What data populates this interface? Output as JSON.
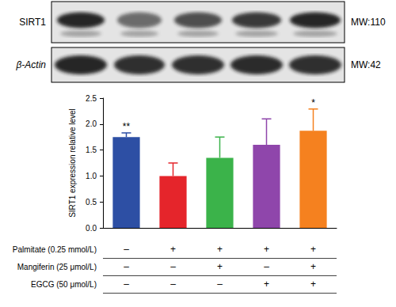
{
  "blot": {
    "rows": [
      {
        "label": "SIRT1",
        "mw": "MW:110"
      },
      {
        "label": "β-Actin",
        "mw": "MW:42"
      }
    ]
  },
  "chart_data": {
    "type": "bar",
    "ylabel": "SIRT1 expression relative level",
    "categories": [
      null,
      null,
      null,
      null,
      null
    ],
    "values": [
      1.75,
      1.0,
      1.35,
      1.6,
      1.87
    ],
    "errors": [
      0.08,
      0.25,
      0.4,
      0.5,
      0.42
    ],
    "significance": [
      "**",
      null,
      null,
      null,
      "*"
    ],
    "colors": [
      "#2d4fa4",
      "#e5252b",
      "#3bb34a",
      "#8f46ab",
      "#f5811f"
    ],
    "ylim": [
      0,
      2.5
    ],
    "yticks": [
      {
        "value": 0,
        "label": "0.0"
      },
      0.5,
      {
        "value": 1,
        "label": "1.0"
      },
      1.5,
      {
        "value": 2,
        "label": "2.0"
      },
      2.5
    ],
    "grid": false,
    "treatments": [
      {
        "label": "Palmitate (0.25 mmol/L)",
        "signs": [
          "–",
          "+",
          "+",
          "+",
          "+"
        ]
      },
      {
        "label": "Mangiferin (25 μmol/L)",
        "signs": [
          "–",
          "–",
          "+",
          "–",
          "+"
        ]
      },
      {
        "label": "EGCG (50 μmol/L)",
        "signs": [
          "–",
          "–",
          "–",
          "+",
          "+"
        ]
      }
    ]
  }
}
